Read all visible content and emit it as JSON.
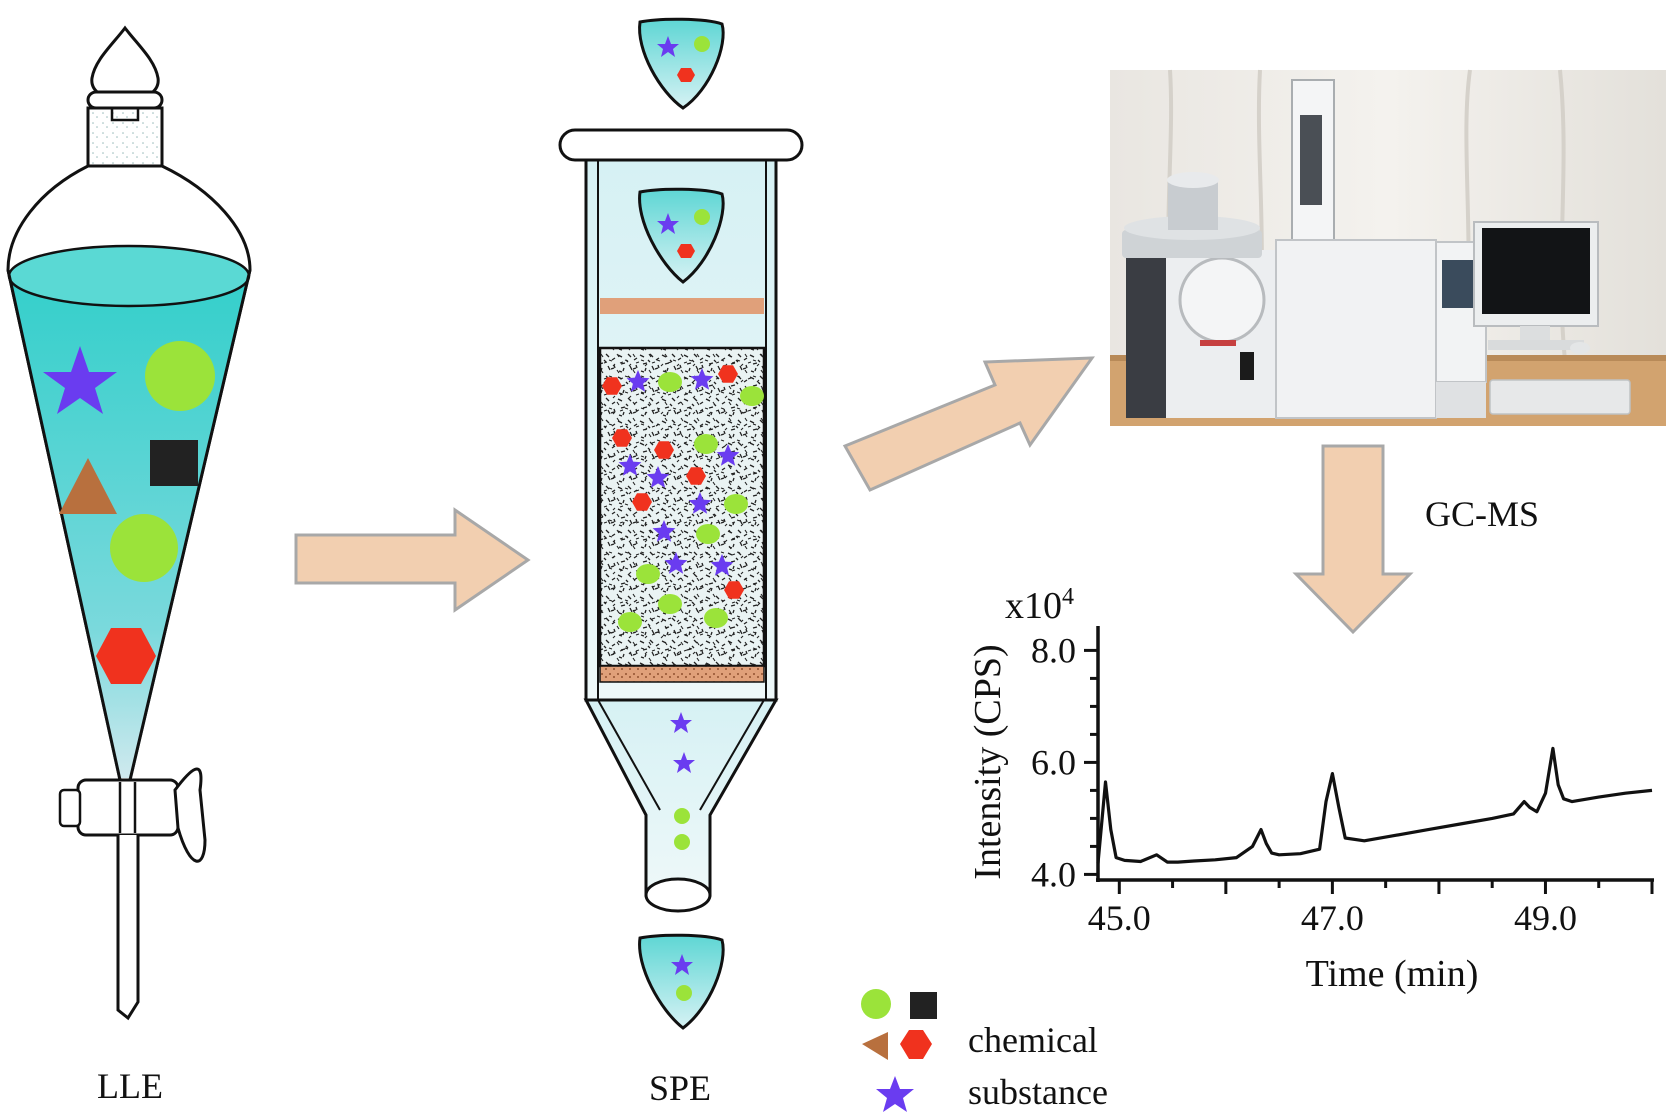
{
  "labels": {
    "lle": "LLE",
    "spe": "SPE",
    "gcms": "GC-MS"
  },
  "legend": {
    "line1": "chemical",
    "line2": "substance"
  },
  "colors": {
    "liquid": "#5ed6d4",
    "liquid_light": "#c4eff0",
    "arrow_fill": "#f2cfb0",
    "arrow_stroke": "#a8a8a8",
    "star": "#6a3cf0",
    "circle": "#9be33a",
    "square": "#222222",
    "triangle": "#b8703e",
    "hexagon": "#f0321e",
    "frit": "#e0a07a"
  },
  "icons": [
    "star",
    "circle",
    "square",
    "triangle",
    "hexagon"
  ],
  "chart_data": {
    "type": "line",
    "xlabel": "Time (min)",
    "ylabel": "Intensity (CPS)",
    "yunit": "x10",
    "yexp": "4",
    "xlim": [
      44.8,
      50.0
    ],
    "ylim": [
      3.9,
      8.4
    ],
    "xticks": [
      "45.0",
      "47.0",
      "49.0"
    ],
    "yticks": [
      "4.0",
      "6.0",
      "8.0"
    ],
    "grid": false,
    "series": [
      {
        "x": [
          44.8,
          44.87,
          44.92,
          44.97,
          45.05,
          45.2,
          45.35,
          45.45,
          45.55,
          45.7,
          45.9,
          46.1,
          46.25,
          46.33,
          46.38,
          46.43,
          46.5,
          46.7,
          46.88,
          46.94,
          47.0,
          47.06,
          47.12,
          47.3,
          47.6,
          47.9,
          48.2,
          48.5,
          48.7,
          48.8,
          48.85,
          48.92,
          49.0,
          49.07,
          49.12,
          49.17,
          49.25,
          49.5,
          49.75,
          50.0
        ],
        "y": [
          4.2,
          5.65,
          4.8,
          4.3,
          4.25,
          4.23,
          4.35,
          4.22,
          4.22,
          4.24,
          4.26,
          4.3,
          4.5,
          4.8,
          4.55,
          4.38,
          4.35,
          4.37,
          4.45,
          5.3,
          5.8,
          5.2,
          4.65,
          4.6,
          4.7,
          4.8,
          4.9,
          5.0,
          5.08,
          5.3,
          5.2,
          5.12,
          5.45,
          6.25,
          5.6,
          5.35,
          5.3,
          5.38,
          5.45,
          5.5
        ]
      }
    ]
  }
}
